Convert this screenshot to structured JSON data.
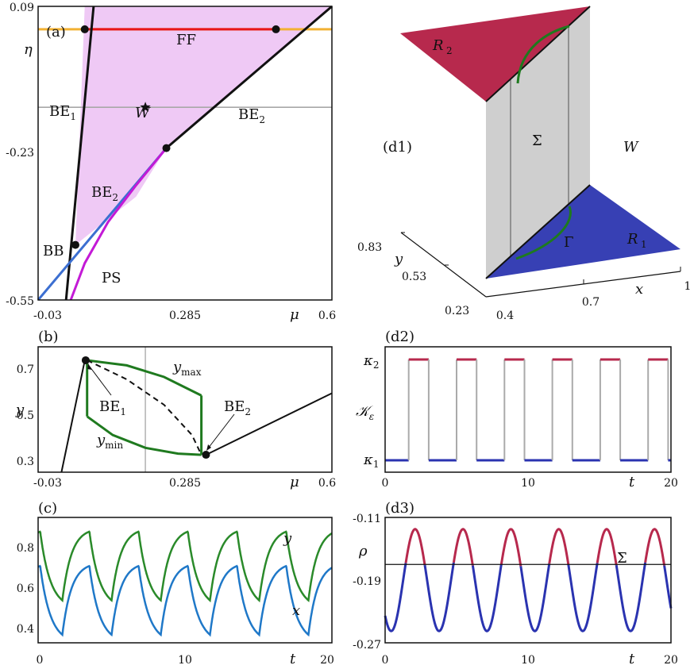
{
  "chart_data": [
    {
      "panel": "(a)",
      "type": "line",
      "xlabel": "μ",
      "ylabel": "η",
      "xticks": [
        "-0.03",
        "0.285",
        "0.6"
      ],
      "yticks": [
        "0.09",
        "-0.23",
        "-0.55"
      ],
      "xlim": [
        -0.03,
        0.6
      ],
      "ylim": [
        -0.55,
        0.09
      ],
      "eta_level": 0.09,
      "w_level": -0.13,
      "region": [
        [
          0.07,
          0.09
        ],
        [
          0.6,
          0.09
        ],
        [
          0.245,
          -0.219
        ],
        [
          0.18,
          -0.325
        ],
        [
          0.05,
          -0.43
        ]
      ],
      "series": [
        {
          "label": "FF",
          "color": "#e8151b",
          "points": [
            [
              0.07,
              0.04
            ],
            [
              0.48,
              0.04
            ]
          ]
        },
        {
          "label": "BE1",
          "color": "#111111",
          "points": [
            [
              0.03,
              -0.55
            ],
            [
              0.089,
              0.09
            ]
          ]
        },
        {
          "label": "BE2",
          "color": "#111111",
          "points": [
            [
              0.245,
              -0.219
            ],
            [
              0.6,
              0.09
            ]
          ]
        },
        {
          "label": "BE2",
          "color": "#3c6fd1",
          "points": [
            [
              -0.03,
              -0.55
            ],
            [
              0.245,
              -0.219
            ]
          ]
        },
        {
          "label": "PS",
          "color": "#c31ad6",
          "points": [
            [
              0.04,
              -0.55
            ],
            [
              0.07,
              -0.47
            ],
            [
              0.12,
              -0.38
            ],
            [
              0.18,
              -0.3
            ],
            [
              0.245,
              -0.219
            ]
          ]
        }
      ],
      "markers": [
        [
          0.07,
          0.04
        ],
        [
          0.48,
          0.04
        ],
        [
          0.245,
          -0.219
        ],
        [
          0.05,
          -0.43
        ]
      ],
      "star": [
        0.2,
        -0.13
      ],
      "labels": {
        "ff": "FF",
        "be1": "BE",
        "be2": "BE",
        "be2b": "BE",
        "sub1": "1",
        "sub2": "2",
        "bb": "BB",
        "ps": "PS",
        "w": "W"
      }
    },
    {
      "panel": "(b)",
      "type": "line",
      "xlabel": "μ",
      "ylabel": "y",
      "xticks": [
        "-0.03",
        "0.285",
        "0.6"
      ],
      "yticks": [
        "0.7",
        "0.5",
        "0.3"
      ],
      "xlim": [
        -0.03,
        0.6
      ],
      "ylim": [
        0.26,
        0.8
      ],
      "series": [
        {
          "label": "branch",
          "color": "#111111",
          "points": [
            [
              0.02,
              0.26
            ],
            [
              0.07,
              0.74
            ]
          ]
        },
        {
          "label": "branch",
          "color": "#111111",
          "points": [
            [
              0.33,
              0.335
            ],
            [
              0.6,
              0.6
            ]
          ]
        },
        {
          "label": "ymax",
          "color": "#1f7a1f",
          "points": [
            [
              0.075,
              0.742
            ],
            [
              0.16,
              0.72
            ],
            [
              0.24,
              0.67
            ],
            [
              0.32,
              0.59
            ]
          ]
        },
        {
          "label": "ymin",
          "color": "#1f7a1f",
          "points": [
            [
              0.075,
              0.5
            ],
            [
              0.13,
              0.42
            ],
            [
              0.2,
              0.365
            ],
            [
              0.27,
              0.34
            ],
            [
              0.32,
              0.335
            ]
          ]
        },
        {
          "label": "ymin",
          "color": "#1f7a1f",
          "points": [
            [
              0.075,
              0.742
            ],
            [
              0.075,
              0.5
            ]
          ]
        },
        {
          "label": "ymax",
          "color": "#1f7a1f",
          "points": [
            [
              0.32,
              0.59
            ],
            [
              0.32,
              0.335
            ]
          ]
        }
      ],
      "dashed": [
        [
          0.075,
          0.742
        ],
        [
          0.16,
          0.66
        ],
        [
          0.24,
          0.55
        ],
        [
          0.3,
          0.42
        ],
        [
          0.32,
          0.335
        ]
      ],
      "vline": 0.2,
      "markers": [
        [
          0.072,
          0.742
        ],
        [
          0.33,
          0.335
        ]
      ],
      "labels": {
        "ymax": "y",
        "ymax_sub": "max",
        "ymin": "y",
        "ymin_sub": "min",
        "be": "BE",
        "sub1": "1",
        "sub2": "2"
      }
    },
    {
      "panel": "(c)",
      "type": "line",
      "xlabel": "t",
      "xticks": [
        "0",
        "10",
        "20"
      ],
      "yticks": [
        "0.8",
        "0.6",
        "0.4"
      ],
      "xlim": [
        0,
        20
      ],
      "ylim": [
        0.32,
        0.94
      ],
      "period": 3.35,
      "phase": 1.65,
      "series": [
        {
          "label": "y",
          "color": "#2a8a2a",
          "min": 0.53,
          "max": 0.87
        },
        {
          "label": "x",
          "color": "#1f78c8",
          "min": 0.36,
          "max": 0.7
        }
      ]
    },
    {
      "panel": "(d1)",
      "type": "diagram",
      "labels": {
        "r2": "R",
        "r2_sub": "2",
        "r1": "R",
        "r1_sub": "1",
        "sigma": "Σ",
        "w": "W",
        "gamma": "Γ",
        "x": "x",
        "y": "y"
      },
      "x_ticks": [
        "0.4",
        "0.7",
        "1"
      ],
      "y_ticks": [
        "0.83",
        "0.53",
        "0.23"
      ],
      "colors": {
        "r2": "#b7294d",
        "r1": "#3740b4",
        "sigma": "#cfcfcf",
        "gamma": "#1e7a1e"
      }
    },
    {
      "panel": "(d2)",
      "type": "line",
      "xlabel": "t",
      "ylabel": "𝒦",
      "ylabel_sub": "ε",
      "xticks": [
        "0",
        "10",
        "20"
      ],
      "yticks": [
        "κ",
        "κ"
      ],
      "ytick_subs": [
        "2",
        "1"
      ],
      "xlim": [
        0,
        20
      ],
      "period": 3.35,
      "phase": 1.65,
      "high_duration": 1.4,
      "colors": {
        "high": "#b7294d",
        "low": "#2a33b0",
        "switch": "#aaaaaa"
      }
    },
    {
      "panel": "(d3)",
      "type": "line",
      "xlabel": "t",
      "ylabel": "ρ",
      "xticks": [
        "0",
        "10",
        "20"
      ],
      "yticks": [
        "-0.11",
        "-0.19",
        "-0.27"
      ],
      "xlim": [
        0,
        20
      ],
      "ylim": [
        -0.27,
        -0.11
      ],
      "threshold": -0.17,
      "threshold_label": "Σ",
      "period": 3.35,
      "phase": 2.1,
      "amplitude": [
        -0.255,
        -0.125
      ],
      "colors": {
        "above": "#b7294d",
        "below": "#2a33b0"
      }
    }
  ]
}
